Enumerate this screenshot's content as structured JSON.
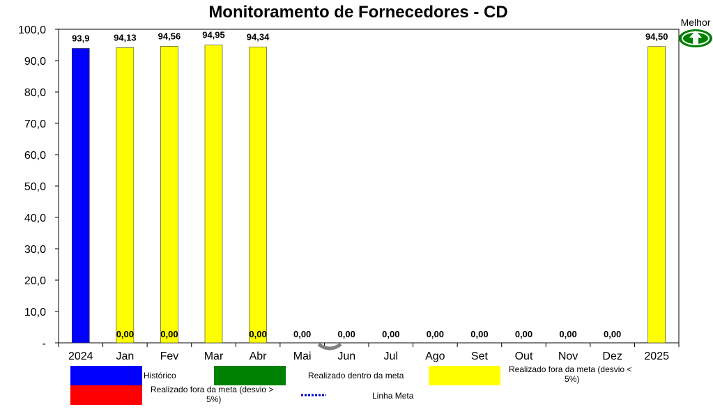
{
  "chart_data": {
    "type": "bar",
    "title": "Monitoramento de Fornecedores - CD",
    "categories": [
      "2024",
      "Jan",
      "Fev",
      "Mar",
      "Abr",
      "Mai",
      "Jun",
      "Jul",
      "Ago",
      "Set",
      "Out",
      "Nov",
      "Dez",
      "2025"
    ],
    "values": [
      93.9,
      94.13,
      94.56,
      94.95,
      94.34,
      null,
      null,
      null,
      null,
      null,
      null,
      null,
      null,
      94.5
    ],
    "bar_colors": [
      "#0000FF",
      "#FFFF00",
      "#FFFF00",
      "#FFFF00",
      "#FFFF00",
      null,
      null,
      null,
      null,
      null,
      null,
      null,
      null,
      "#FFFF00"
    ],
    "top_labels": [
      "93,9",
      "94,13",
      "94,56",
      "94,95",
      "94,34",
      "",
      "",
      "",
      "",
      "",
      "",
      "",
      "",
      "94,50"
    ],
    "bottom_labels": [
      "",
      "0,00",
      "0,00",
      "",
      "0,00",
      "0,00",
      "0,00",
      "0,00",
      "0,00",
      "0,00",
      "0,00",
      "0,00",
      "0,00",
      ""
    ],
    "ylim": [
      0,
      100
    ],
    "yticks": [
      "-",
      "10,0",
      "20,0",
      "30,0",
      "40,0",
      "50,0",
      "60,0",
      "70,0",
      "80,0",
      "90,0",
      "100,0"
    ],
    "grid": false,
    "better_direction": "up",
    "better_label": "Melhor",
    "legend": [
      {
        "label": "Histórico",
        "color": "#0000FF",
        "kind": "box"
      },
      {
        "label": "Realizado dentro da meta",
        "color": "#008000",
        "kind": "box"
      },
      {
        "label": "Realizado fora da meta (desvio < 5%)",
        "color": "#FFFF00",
        "kind": "box"
      },
      {
        "label": "Realizado fora da meta (desvio > 5%)",
        "color": "#FF0000",
        "kind": "box"
      },
      {
        "label": "Linha Meta",
        "color": "#0000CC",
        "kind": "dotted-line"
      }
    ]
  }
}
